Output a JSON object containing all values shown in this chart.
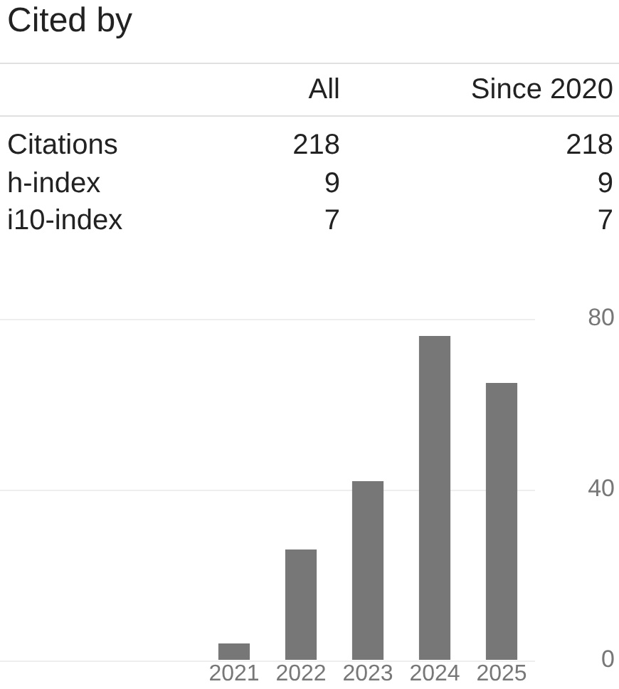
{
  "chart_data": [
    {
      "type": "other",
      "title": "Cited by",
      "categories": [
        "Citations",
        "h-index",
        "i10-index"
      ],
      "series": [
        {
          "name": "All",
          "values": [
            218,
            9,
            7
          ]
        },
        {
          "name": "Since 2020",
          "values": [
            218,
            9,
            7
          ]
        }
      ],
      "data_labels": true
    },
    {
      "type": "bar",
      "categories": [
        null,
        null,
        null,
        "2021",
        "2022",
        "2023",
        "2024",
        "2025"
      ],
      "values": [
        null,
        null,
        null,
        4,
        26,
        42,
        76,
        65
      ],
      "color": "#777777",
      "ylim": [
        0,
        80
      ],
      "yticks": [
        0,
        40,
        80
      ],
      "grid": "y"
    }
  ]
}
